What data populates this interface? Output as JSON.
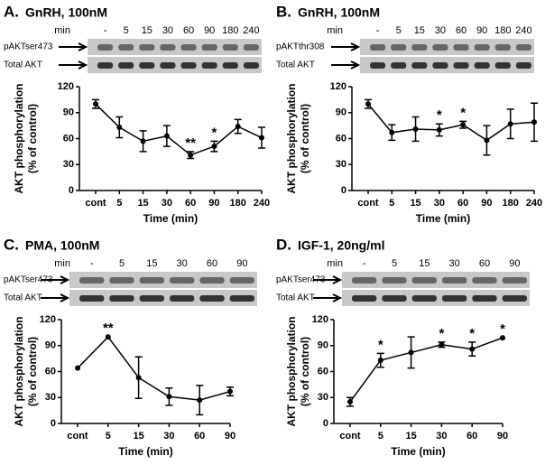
{
  "chart_data": [
    {
      "type": "line",
      "panel_label": "A.",
      "title": "GnRH, 100nM",
      "blot_header": "min",
      "blot_lanes": [
        "-",
        "5",
        "15",
        "30",
        "60",
        "90",
        "180",
        "240"
      ],
      "blot_rows": [
        "pAKTser473",
        "Total AKT"
      ],
      "ylabel": [
        "AKT phosphorylation",
        "(% of control)"
      ],
      "xlabel": "Time (min)",
      "categories": [
        "cont",
        "5",
        "15",
        "30",
        "60",
        "90",
        "180",
        "240"
      ],
      "values": [
        100,
        73,
        57,
        63,
        41,
        51,
        74,
        61
      ],
      "errors": [
        5,
        12,
        12,
        12,
        4,
        6,
        8,
        12
      ],
      "annotations": [
        {
          "text": "**",
          "x": "60"
        },
        {
          "text": "*",
          "x": "90"
        }
      ],
      "ylim": [
        0,
        120
      ],
      "yticks": [
        0,
        30,
        60,
        90,
        120
      ],
      "color": "#000000"
    },
    {
      "type": "line",
      "panel_label": "B.",
      "title": "GnRH, 100nM",
      "blot_header": "min",
      "blot_lanes": [
        "-",
        "5",
        "15",
        "30",
        "60",
        "90",
        "180",
        "240"
      ],
      "blot_rows": [
        "pAKTthr308",
        "Total AKT"
      ],
      "ylabel": [
        "AKT phosphorylation",
        "(% of control)"
      ],
      "xlabel": "Time (min)",
      "categories": [
        "cont",
        "5",
        "15",
        "30",
        "60",
        "90",
        "180",
        "240"
      ],
      "values": [
        100,
        67,
        71,
        70,
        76,
        58,
        77,
        79
      ],
      "errors": [
        5,
        9,
        14,
        7,
        4,
        17,
        17,
        22
      ],
      "annotations": [
        {
          "text": "*",
          "x": "30"
        },
        {
          "text": "*",
          "x": "60"
        }
      ],
      "ylim": [
        0,
        120
      ],
      "yticks": [
        0,
        30,
        60,
        90,
        120
      ],
      "color": "#000000"
    },
    {
      "type": "line",
      "panel_label": "C.",
      "title": "PMA, 100nM",
      "blot_header": "min",
      "blot_lanes": [
        "-",
        "5",
        "15",
        "30",
        "60",
        "90"
      ],
      "blot_rows": [
        "pAKTser473",
        "Total AKT"
      ],
      "ylabel": [
        "AKT phosphorylation",
        "(% of control)"
      ],
      "xlabel": "Time (min)",
      "categories": [
        "cont",
        "5",
        "15",
        "30",
        "60",
        "90"
      ],
      "values": [
        64,
        100,
        53,
        31,
        27,
        37
      ],
      "errors": [
        null,
        null,
        24,
        10,
        17,
        5
      ],
      "annotations": [
        {
          "text": "**",
          "x": "5"
        }
      ],
      "ylim": [
        0,
        120
      ],
      "yticks": [
        0,
        30,
        60,
        90,
        120
      ],
      "color": "#000000"
    },
    {
      "type": "line",
      "panel_label": "D.",
      "title": "IGF-1, 20ng/ml",
      "blot_header": "min",
      "blot_lanes": [
        "-",
        "5",
        "15",
        "30",
        "60",
        "90"
      ],
      "blot_rows": [
        "pAKTser473",
        "Total AKT"
      ],
      "ylabel": [
        "AKT phosphorylation",
        "(% of control)"
      ],
      "xlabel": "Time (min)",
      "categories": [
        "cont",
        "5",
        "15",
        "30",
        "60",
        "90"
      ],
      "values": [
        25,
        73,
        82,
        91,
        86,
        99
      ],
      "errors": [
        5,
        8,
        18,
        3,
        8,
        null
      ],
      "annotations": [
        {
          "text": "*",
          "x": "5"
        },
        {
          "text": "*",
          "x": "30"
        },
        {
          "text": "*",
          "x": "60"
        },
        {
          "text": "*",
          "x": "90"
        }
      ],
      "ylim": [
        0,
        120
      ],
      "yticks": [
        0,
        30,
        60,
        90,
        120
      ],
      "color": "#000000"
    }
  ]
}
